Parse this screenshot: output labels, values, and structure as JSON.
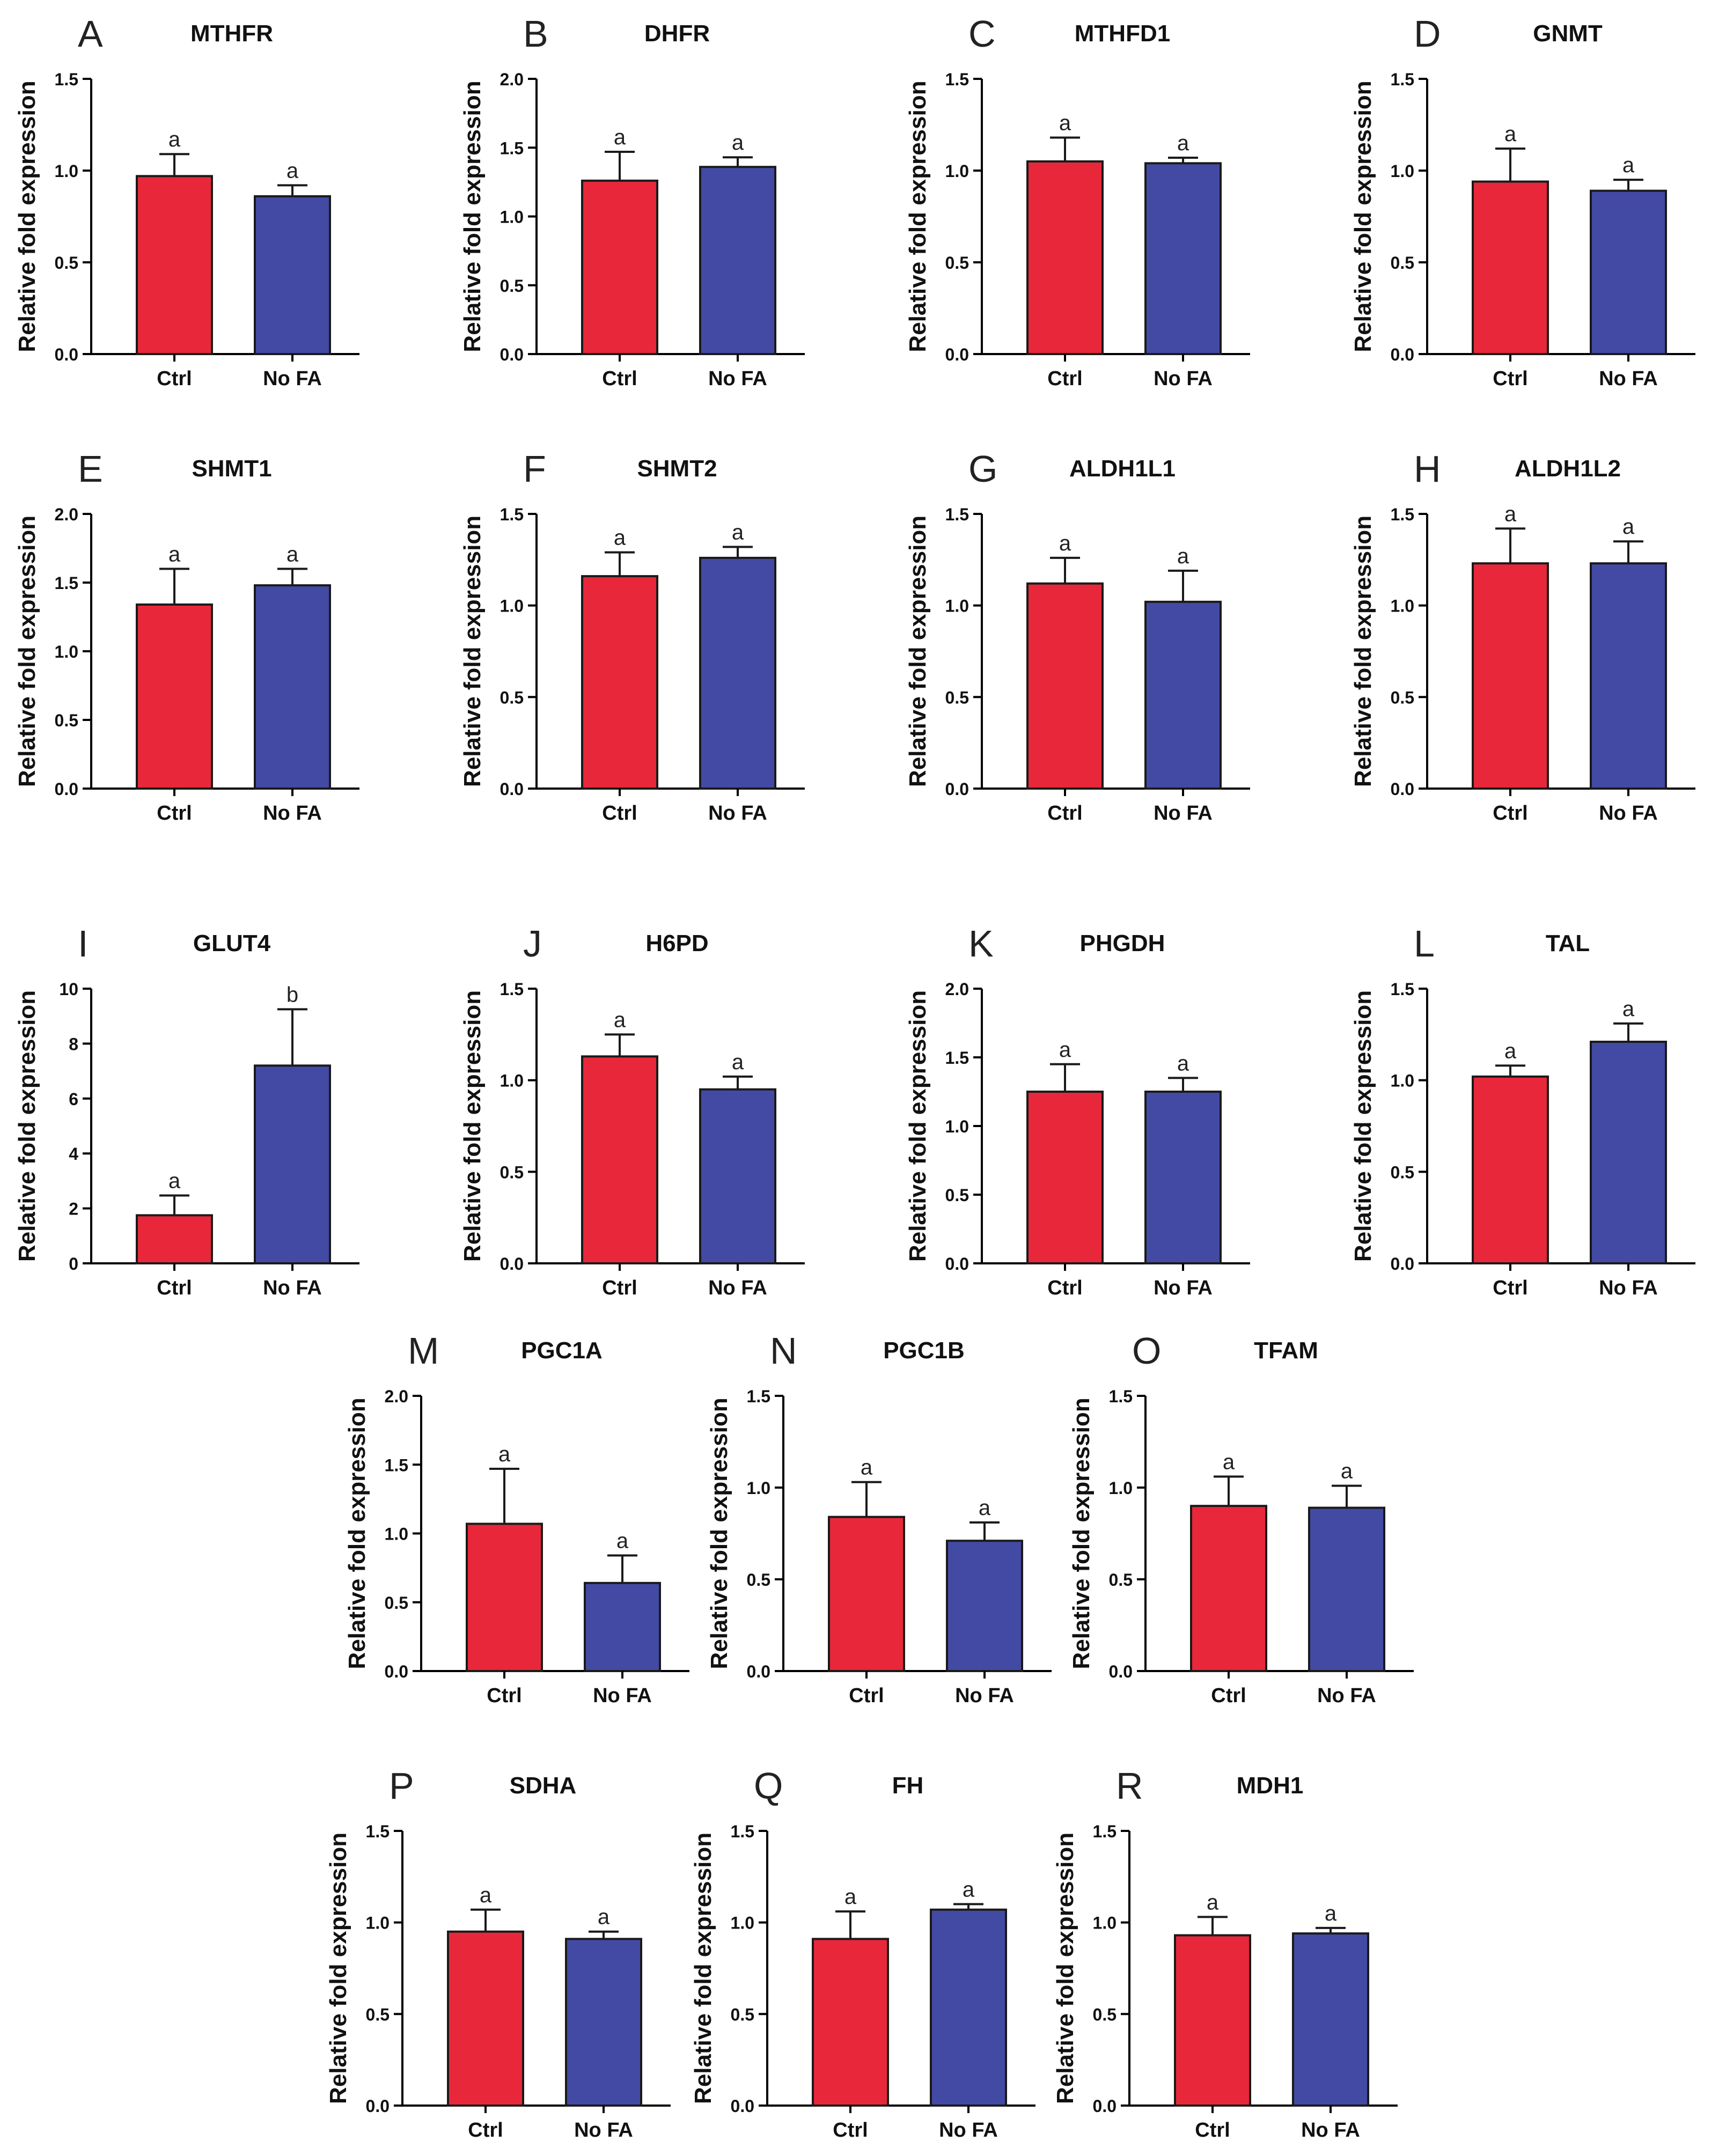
{
  "colors": {
    "ctrl": "#E8283A",
    "nofa": "#434AA4",
    "axis": "#000000"
  },
  "y_axis_label": "Relative fold expression",
  "categories": [
    "Ctrl",
    "No FA"
  ],
  "chart_data": [
    {
      "panel": "A",
      "type": "bar",
      "title": "MTHFR",
      "categories": [
        "Ctrl",
        "No FA"
      ],
      "values": [
        0.97,
        0.86
      ],
      "errors": [
        0.12,
        0.06
      ],
      "letters": [
        "a",
        "a"
      ],
      "ylabel": "Relative fold expression",
      "ylim": [
        0,
        1.5
      ],
      "yticks": [
        "0.0",
        "0.5",
        "1.0",
        "1.5"
      ]
    },
    {
      "panel": "B",
      "type": "bar",
      "title": "DHFR",
      "categories": [
        "Ctrl",
        "No FA"
      ],
      "values": [
        1.26,
        1.36
      ],
      "errors": [
        0.21,
        0.07
      ],
      "letters": [
        "a",
        "a"
      ],
      "ylabel": "Relative fold expression",
      "ylim": [
        0,
        2.0
      ],
      "yticks": [
        "0.0",
        "0.5",
        "1.0",
        "1.5",
        "2.0"
      ]
    },
    {
      "panel": "C",
      "type": "bar",
      "title": "MTHFD1",
      "categories": [
        "Ctrl",
        "No FA"
      ],
      "values": [
        1.05,
        1.04
      ],
      "errors": [
        0.13,
        0.03
      ],
      "letters": [
        "a",
        "a"
      ],
      "ylabel": "Relative fold expression",
      "ylim": [
        0,
        1.5
      ],
      "yticks": [
        "0.0",
        "0.5",
        "1.0",
        "1.5"
      ]
    },
    {
      "panel": "D",
      "type": "bar",
      "title": "GNMT",
      "categories": [
        "Ctrl",
        "No FA"
      ],
      "values": [
        0.94,
        0.89
      ],
      "errors": [
        0.18,
        0.06
      ],
      "letters": [
        "a",
        "a"
      ],
      "ylabel": "Relative fold expression",
      "ylim": [
        0,
        1.5
      ],
      "yticks": [
        "0.0",
        "0.5",
        "1.0",
        "1.5"
      ]
    },
    {
      "panel": "E",
      "type": "bar",
      "title": "SHMT1",
      "categories": [
        "Ctrl",
        "No FA"
      ],
      "values": [
        1.34,
        1.48
      ],
      "errors": [
        0.26,
        0.12
      ],
      "letters": [
        "a",
        "a"
      ],
      "ylabel": "Relative fold expression",
      "ylim": [
        0,
        2.0
      ],
      "yticks": [
        "0.0",
        "0.5",
        "1.0",
        "1.5",
        "2.0"
      ]
    },
    {
      "panel": "F",
      "type": "bar",
      "title": "SHMT2",
      "categories": [
        "Ctrl",
        "No FA"
      ],
      "values": [
        1.16,
        1.26
      ],
      "errors": [
        0.13,
        0.06
      ],
      "letters": [
        "a",
        "a"
      ],
      "ylabel": "Relative fold expression",
      "ylim": [
        0,
        1.5
      ],
      "yticks": [
        "0.0",
        "0.5",
        "1.0",
        "1.5"
      ]
    },
    {
      "panel": "G",
      "type": "bar",
      "title": "ALDH1L1",
      "categories": [
        "Ctrl",
        "No FA"
      ],
      "values": [
        1.12,
        1.02
      ],
      "errors": [
        0.14,
        0.17
      ],
      "letters": [
        "a",
        "a"
      ],
      "ylabel": "Relative fold expression",
      "ylim": [
        0,
        1.5
      ],
      "yticks": [
        "0.0",
        "0.5",
        "1.0",
        "1.5"
      ]
    },
    {
      "panel": "H",
      "type": "bar",
      "title": "ALDH1L2",
      "categories": [
        "Ctrl",
        "No FA"
      ],
      "values": [
        1.23,
        1.23
      ],
      "errors": [
        0.19,
        0.12
      ],
      "letters": [
        "a",
        "a"
      ],
      "ylabel": "Relative fold expression",
      "ylim": [
        0,
        1.5
      ],
      "yticks": [
        "0.0",
        "0.5",
        "1.0",
        "1.5"
      ]
    },
    {
      "panel": "I",
      "type": "bar",
      "title": "GLUT4",
      "categories": [
        "Ctrl",
        "No FA"
      ],
      "values": [
        1.75,
        7.2
      ],
      "errors": [
        0.72,
        2.05
      ],
      "letters": [
        "a",
        "b"
      ],
      "ylabel": "Relative fold expression",
      "ylim": [
        0,
        10
      ],
      "yticks": [
        "0",
        "2",
        "4",
        "6",
        "8",
        "10"
      ]
    },
    {
      "panel": "J",
      "type": "bar",
      "title": "H6PD",
      "categories": [
        "Ctrl",
        "No FA"
      ],
      "values": [
        1.13,
        0.95
      ],
      "errors": [
        0.12,
        0.07
      ],
      "letters": [
        "a",
        "a"
      ],
      "ylabel": "Relative fold expression",
      "ylim": [
        0,
        1.5
      ],
      "yticks": [
        "0.0",
        "0.5",
        "1.0",
        "1.5"
      ]
    },
    {
      "panel": "K",
      "type": "bar",
      "title": "PHGDH",
      "categories": [
        "Ctrl",
        "No FA"
      ],
      "values": [
        1.25,
        1.25
      ],
      "errors": [
        0.2,
        0.1
      ],
      "letters": [
        "a",
        "a"
      ],
      "ylabel": "Relative fold expression",
      "ylim": [
        0,
        2.0
      ],
      "yticks": [
        "0.0",
        "0.5",
        "1.0",
        "1.5",
        "2.0"
      ]
    },
    {
      "panel": "L",
      "type": "bar",
      "title": "TAL",
      "categories": [
        "Ctrl",
        "No FA"
      ],
      "values": [
        1.02,
        1.21
      ],
      "errors": [
        0.06,
        0.1
      ],
      "letters": [
        "a",
        "a"
      ],
      "ylabel": "Relative fold expression",
      "ylim": [
        0,
        1.5
      ],
      "yticks": [
        "0.0",
        "0.5",
        "1.0",
        "1.5"
      ]
    },
    {
      "panel": "M",
      "type": "bar",
      "title": "PGC1A",
      "categories": [
        "Ctrl",
        "No FA"
      ],
      "values": [
        1.07,
        0.64
      ],
      "errors": [
        0.4,
        0.2
      ],
      "letters": [
        "a",
        "a"
      ],
      "ylabel": "Relative fold expression",
      "ylim": [
        0,
        2.0
      ],
      "yticks": [
        "0.0",
        "0.5",
        "1.0",
        "1.5",
        "2.0"
      ]
    },
    {
      "panel": "N",
      "type": "bar",
      "title": "PGC1B",
      "categories": [
        "Ctrl",
        "No FA"
      ],
      "values": [
        0.84,
        0.71
      ],
      "errors": [
        0.19,
        0.1
      ],
      "letters": [
        "a",
        "a"
      ],
      "ylabel": "Relative fold expression",
      "ylim": [
        0,
        1.5
      ],
      "yticks": [
        "0.0",
        "0.5",
        "1.0",
        "1.5"
      ]
    },
    {
      "panel": "O",
      "type": "bar",
      "title": "TFAM",
      "categories": [
        "Ctrl",
        "No FA"
      ],
      "values": [
        0.9,
        0.89
      ],
      "errors": [
        0.16,
        0.12
      ],
      "letters": [
        "a",
        "a"
      ],
      "ylabel": "Relative fold expression",
      "ylim": [
        0,
        1.5
      ],
      "yticks": [
        "0.0",
        "0.5",
        "1.0",
        "1.5"
      ]
    },
    {
      "panel": "P",
      "type": "bar",
      "title": "SDHA",
      "categories": [
        "Ctrl",
        "No FA"
      ],
      "values": [
        0.95,
        0.91
      ],
      "errors": [
        0.12,
        0.04
      ],
      "letters": [
        "a",
        "a"
      ],
      "ylabel": "Relative fold expression",
      "ylim": [
        0,
        1.5
      ],
      "yticks": [
        "0.0",
        "0.5",
        "1.0",
        "1.5"
      ]
    },
    {
      "panel": "Q",
      "type": "bar",
      "title": "FH",
      "categories": [
        "Ctrl",
        "No FA"
      ],
      "values": [
        0.91,
        1.07
      ],
      "errors": [
        0.15,
        0.03
      ],
      "letters": [
        "a",
        "a"
      ],
      "ylabel": "Relative fold expression",
      "ylim": [
        0,
        1.5
      ],
      "yticks": [
        "0.0",
        "0.5",
        "1.0",
        "1.5"
      ]
    },
    {
      "panel": "R",
      "type": "bar",
      "title": "MDH1",
      "categories": [
        "Ctrl",
        "No FA"
      ],
      "values": [
        0.93,
        0.94
      ],
      "errors": [
        0.1,
        0.03
      ],
      "letters": [
        "a",
        "a"
      ],
      "ylabel": "Relative fold expression",
      "ylim": [
        0,
        1.5
      ],
      "yticks": [
        "0.0",
        "0.5",
        "1.0",
        "1.5"
      ]
    }
  ]
}
